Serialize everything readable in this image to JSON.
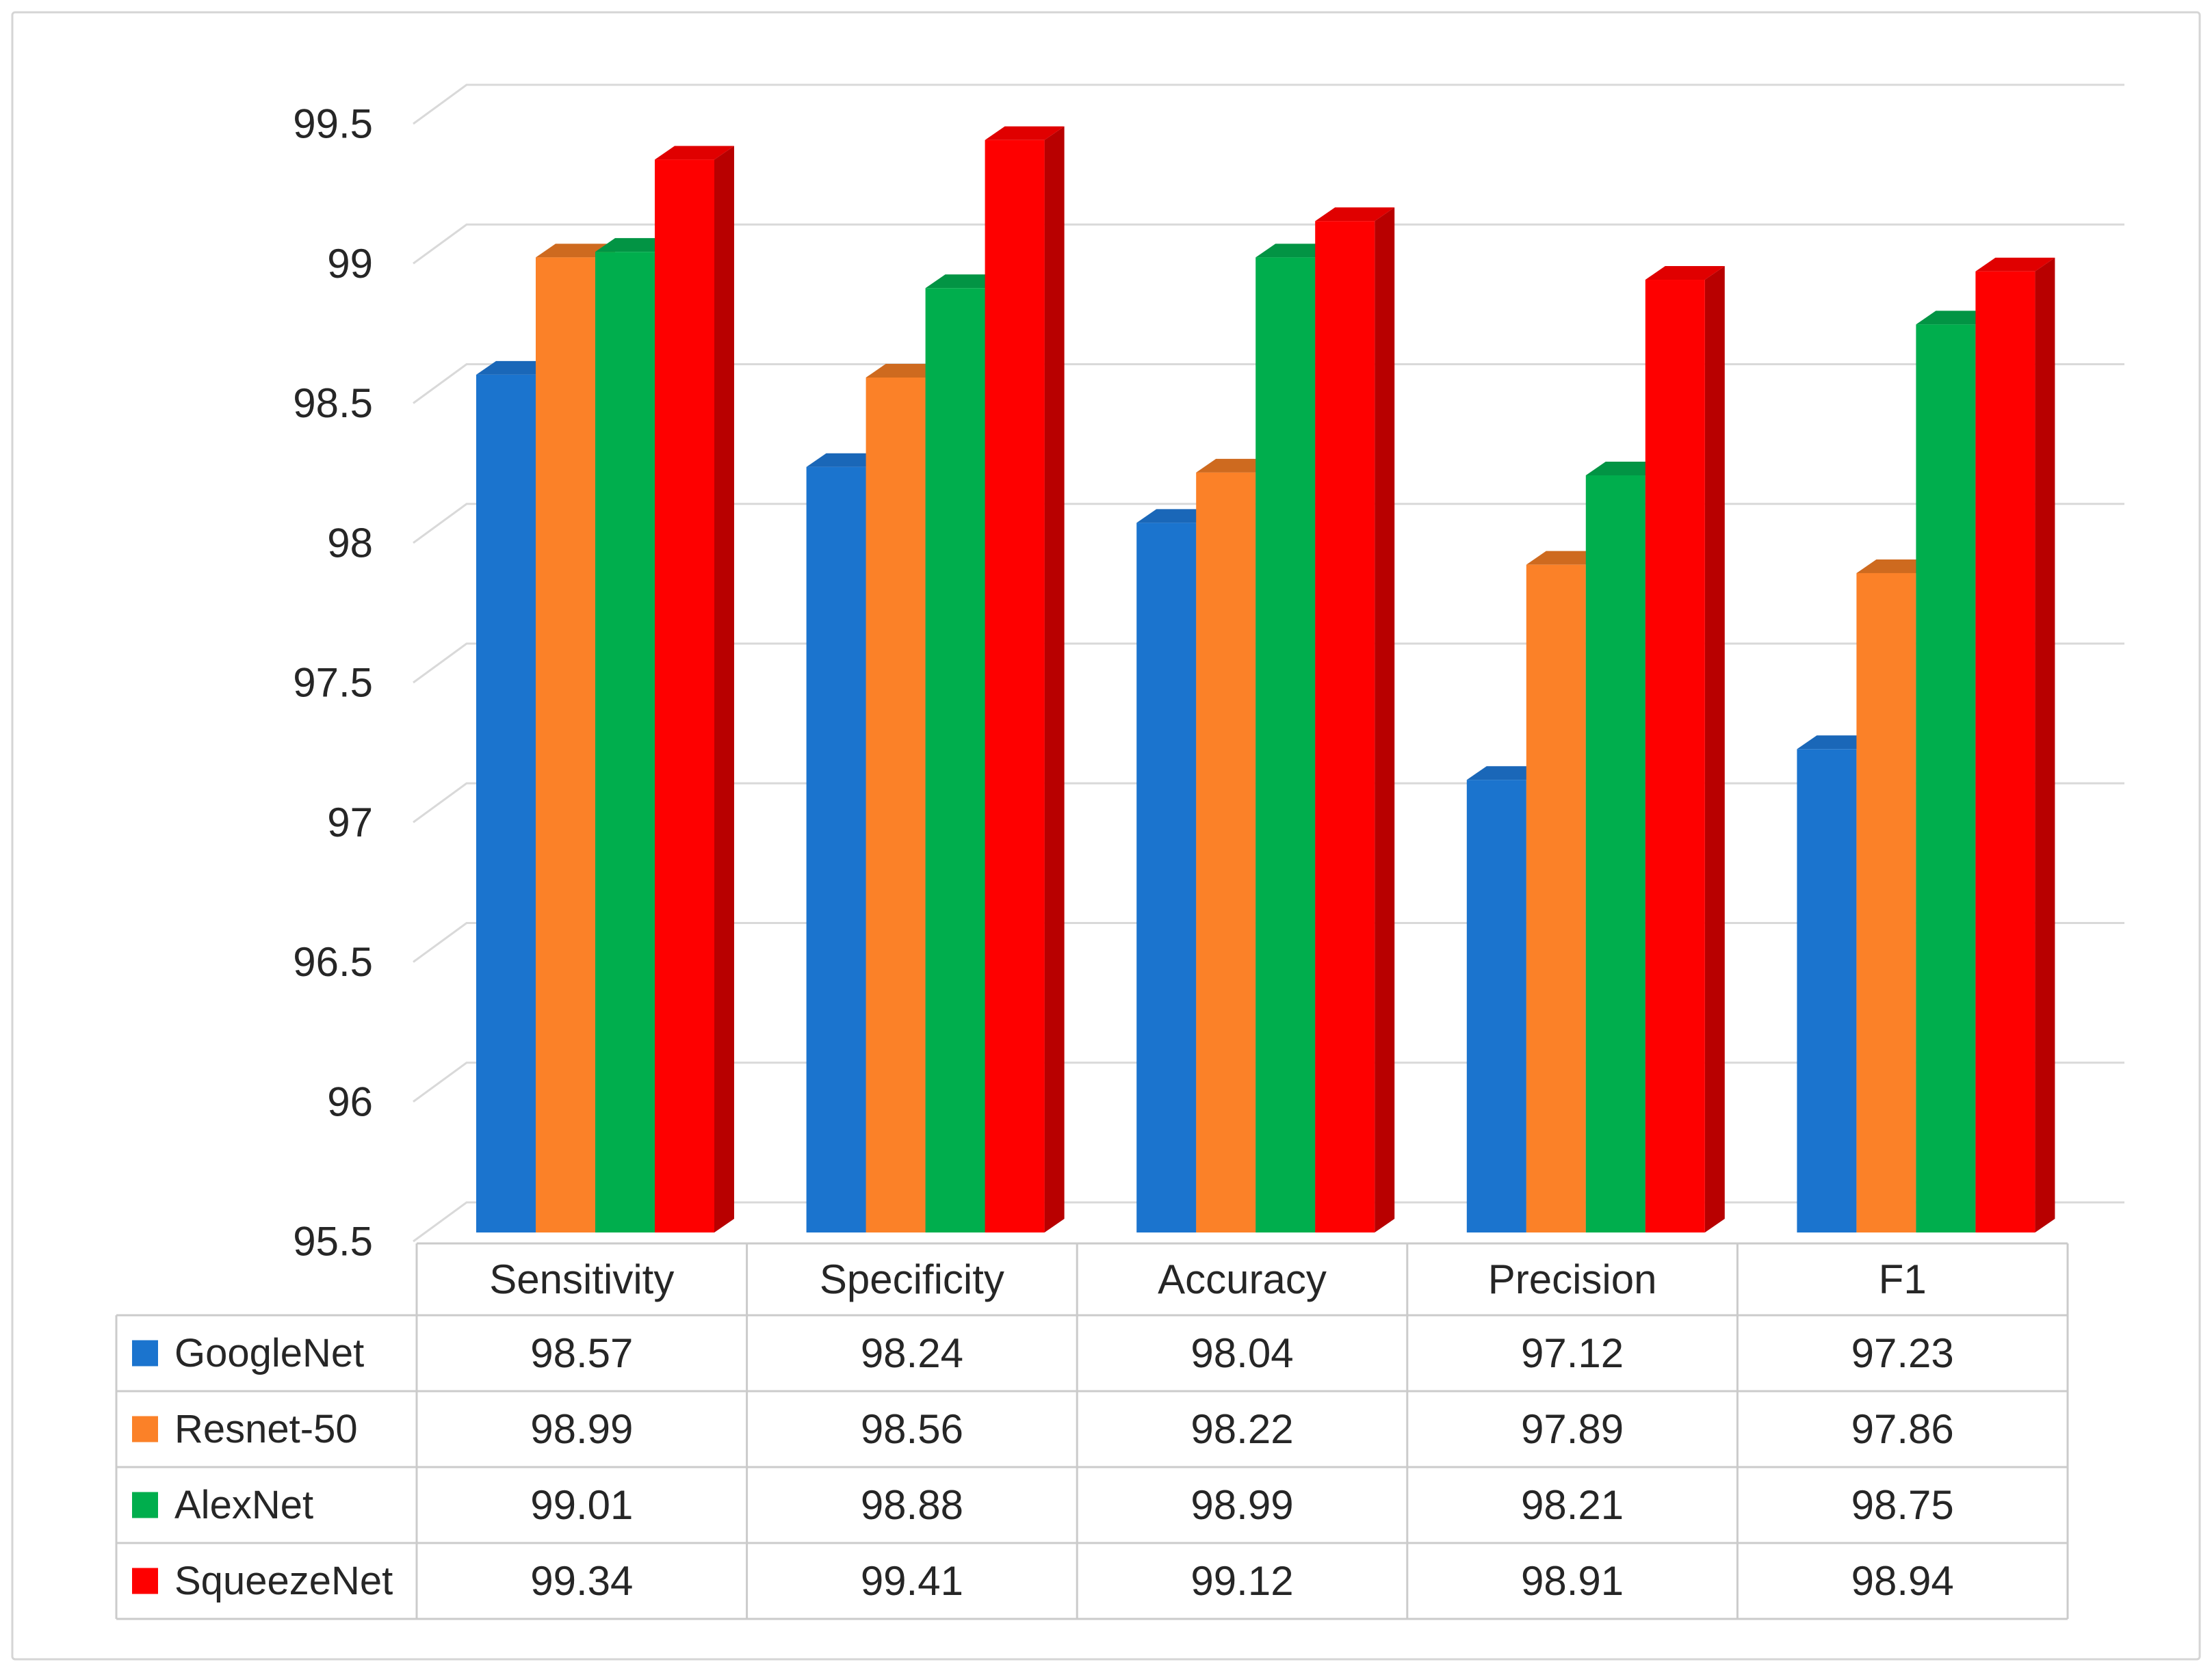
{
  "figure": {
    "background": "#FFFFFF",
    "border_color": "#D5D5D5",
    "text_color": "#262626",
    "gridline_color": "#D9D9D9",
    "table_border_color": "#CBCBCB"
  },
  "chart_data": {
    "type": "bar",
    "style": "3d-clustered-column",
    "title": "",
    "xlabel": "",
    "ylabel": "",
    "categories": [
      "Sensitivity",
      "Specificity",
      "Accuracy",
      "Precision",
      "F1"
    ],
    "series": [
      {
        "name": "GoogleNet",
        "color": "#1B74CE",
        "top_color": "#1A67B8",
        "side_color": "#14549A",
        "values": [
          98.57,
          98.24,
          98.04,
          97.12,
          97.23
        ]
      },
      {
        "name": "Resnet-50",
        "color": "#FB8128",
        "top_color": "#CE6A1F",
        "side_color": "#BF5E16",
        "values": [
          98.99,
          98.56,
          98.22,
          97.89,
          97.86
        ]
      },
      {
        "name": "AlexNet",
        "color": "#00AE4D",
        "top_color": "#029444",
        "side_color": "#028A3E",
        "values": [
          99.01,
          98.88,
          98.99,
          98.21,
          98.75
        ]
      },
      {
        "name": "SqueezeNet",
        "color": "#FE0000",
        "top_color": "#E00000",
        "side_color": "#B80000",
        "values": [
          99.34,
          99.41,
          99.12,
          98.91,
          98.94
        ]
      }
    ],
    "y_axis": {
      "min": 95.5,
      "max": 99.5,
      "step": 0.5,
      "tick_labels_top_to_bottom": [
        "99.5",
        "99",
        "98.5",
        "98",
        "97.5",
        "97",
        "96.5",
        "96",
        "95.5"
      ]
    },
    "value_format_decimals": 2,
    "grid": true,
    "legend_position": "table-left"
  }
}
